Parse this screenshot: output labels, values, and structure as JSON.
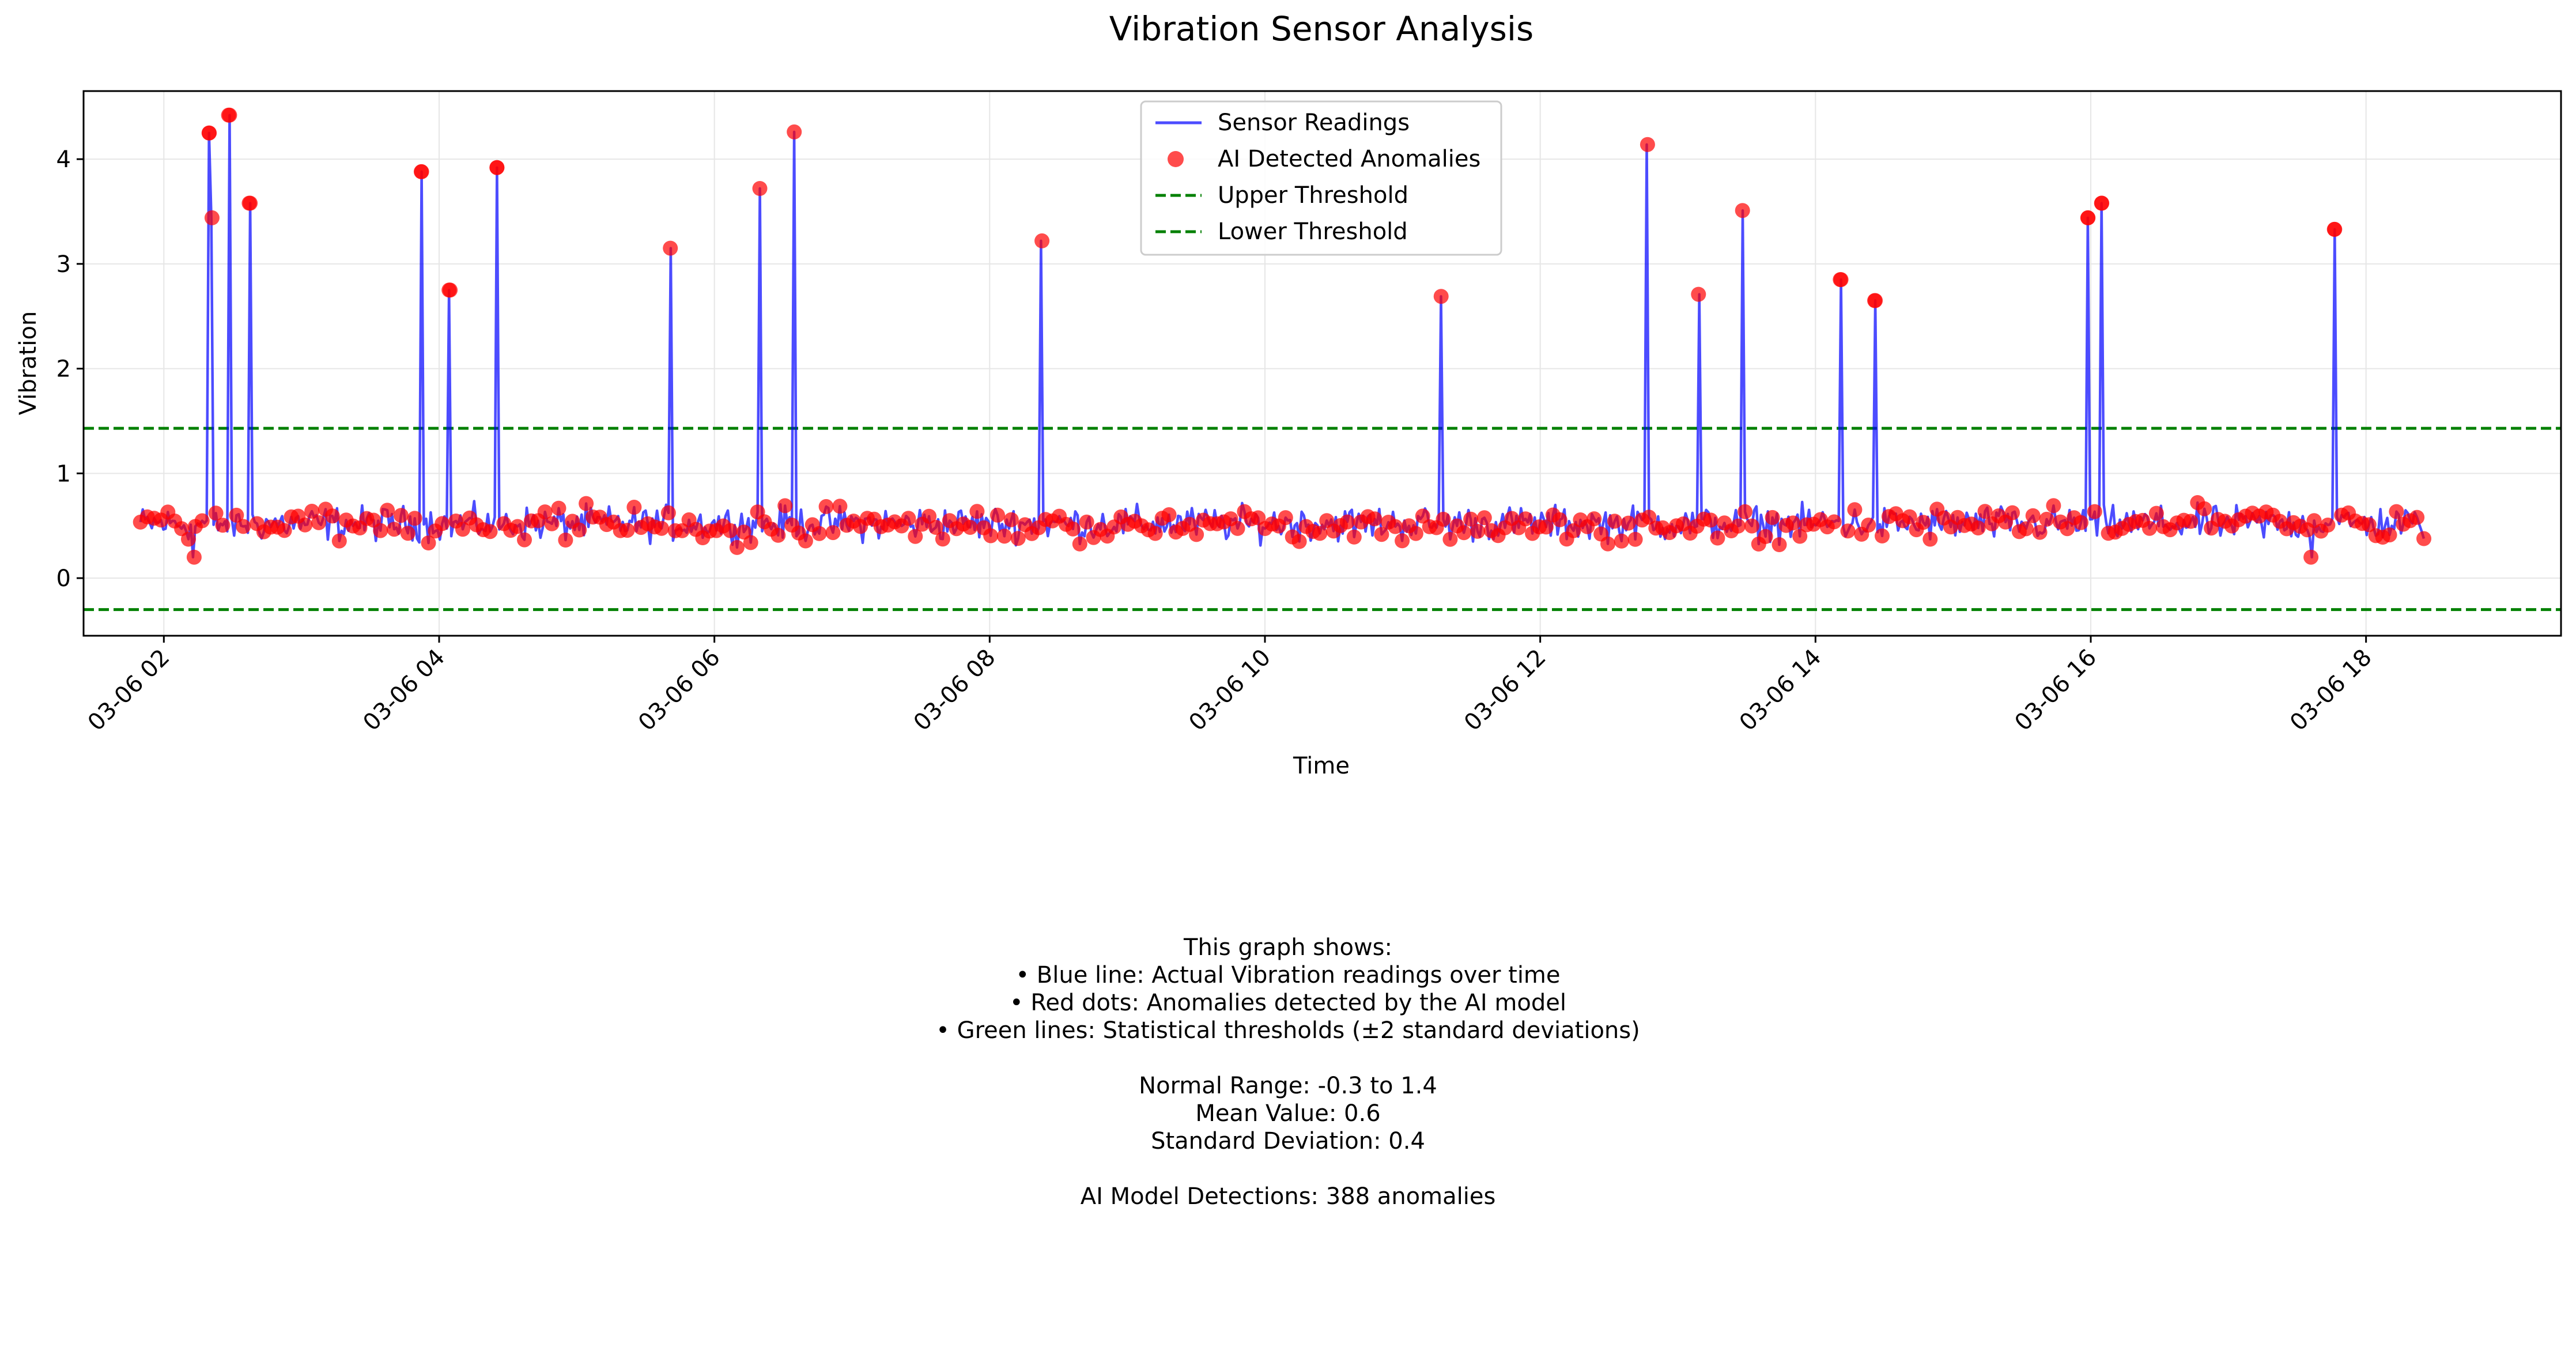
{
  "chart_data": {
    "type": "line",
    "title": "Vibration Sensor Analysis",
    "xlabel": "Time",
    "ylabel": "Vibration",
    "x_range": [
      "2024-03-06 01:25",
      "2024-03-06 19:25"
    ],
    "ylim": [
      -0.55,
      4.65
    ],
    "x_tick_labels": [
      "03-06 02",
      "03-06 04",
      "03-06 06",
      "03-06 08",
      "03-06 10",
      "03-06 12",
      "03-06 14",
      "03-06 16",
      "03-06 18"
    ],
    "x_tick_hours": [
      2,
      4,
      6,
      8,
      10,
      12,
      14,
      16,
      18
    ],
    "y_ticks": [
      0,
      1,
      2,
      3,
      4
    ],
    "grid": true,
    "legend_position": "top-center",
    "legend": [
      "Sensor Readings",
      "AI Detected Anomalies",
      "Upper Threshold",
      "Lower Threshold"
    ],
    "colors": {
      "sensor": "#0000ff",
      "anomaly": "#ff0000",
      "threshold": "#008000",
      "grid": "#e6e6e6"
    },
    "thresholds": {
      "upper": 1.43,
      "lower": -0.3
    },
    "series_time_range_hours": [
      1.83,
      18.42
    ],
    "baseline": {
      "mean": 0.52,
      "amplitude": 0.1
    },
    "spikes": [
      {
        "h": 2.33,
        "v": 4.25
      },
      {
        "h": 2.35,
        "v": 3.44
      },
      {
        "h": 2.47,
        "v": 4.42
      },
      {
        "h": 2.62,
        "v": 3.58
      },
      {
        "h": 3.87,
        "v": 3.88
      },
      {
        "h": 4.08,
        "v": 2.75
      },
      {
        "h": 4.42,
        "v": 3.92
      },
      {
        "h": 5.68,
        "v": 3.15
      },
      {
        "h": 6.33,
        "v": 3.72
      },
      {
        "h": 6.58,
        "v": 4.26
      },
      {
        "h": 8.38,
        "v": 3.22
      },
      {
        "h": 11.28,
        "v": 2.69
      },
      {
        "h": 12.78,
        "v": 4.14
      },
      {
        "h": 13.15,
        "v": 2.71
      },
      {
        "h": 13.47,
        "v": 3.51
      },
      {
        "h": 14.18,
        "v": 2.85
      },
      {
        "h": 14.43,
        "v": 2.65
      },
      {
        "h": 15.98,
        "v": 3.44
      },
      {
        "h": 16.08,
        "v": 3.58
      },
      {
        "h": 17.77,
        "v": 3.33
      }
    ],
    "low_anomalies": [
      {
        "h": 2.22,
        "v": 0.2
      },
      {
        "h": 17.6,
        "v": 0.2
      }
    ]
  },
  "description": {
    "heading": "This graph shows:",
    "bullet_blue": "• Blue line: Actual Vibration readings over time",
    "bullet_red": "• Red dots: Anomalies detected by the AI model",
    "bullet_green": "• Green lines: Statistical thresholds (±2 standard deviations)",
    "normal_range": "Normal Range: -0.3 to 1.4",
    "mean_value": "Mean Value: 0.6",
    "std_dev": "Standard Deviation: 0.4",
    "detections": "AI Model Detections: 388 anomalies"
  }
}
